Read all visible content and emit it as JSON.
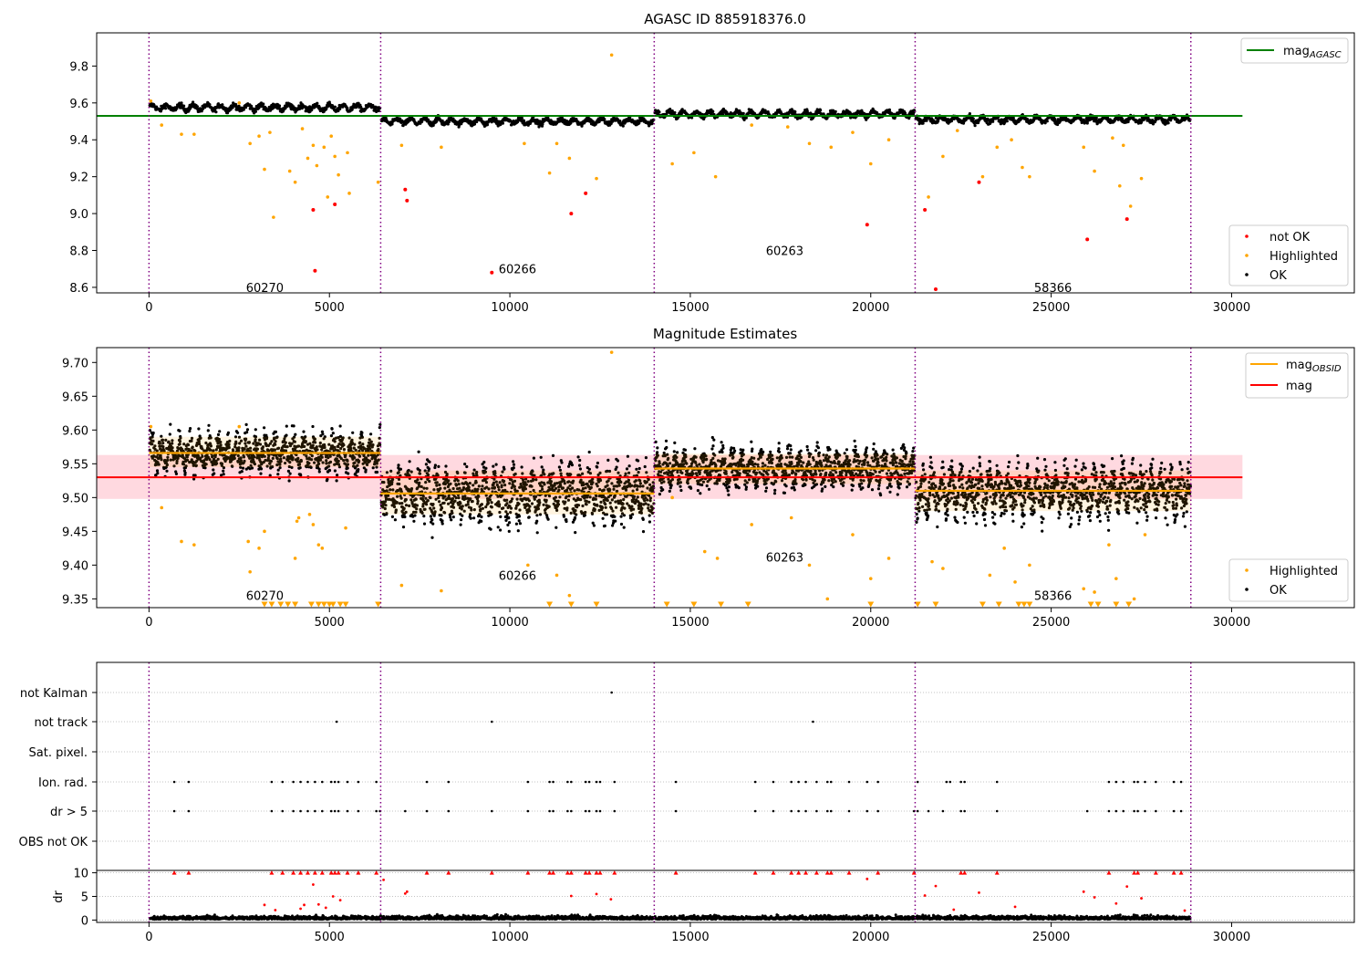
{
  "figure": {
    "title_top": "AGASC ID 885918376.0",
    "title_mid": "Magnitude Estimates"
  },
  "colors": {
    "ok": "#000000",
    "highlighted": "#ffa500",
    "not_ok": "#ff0000",
    "agasc_line": "#008000",
    "mean_line": "#ff0000",
    "mean_band": "#ffc0cb",
    "obsid_line": "#ffa500",
    "boundary": "#800080",
    "grid": "#b0b0b0"
  },
  "chart_data": [
    {
      "type": "scatter",
      "title": "AGASC ID 885918376.0",
      "xlim": [
        -1450,
        33400
      ],
      "ylim": [
        8.57,
        9.98
      ],
      "x_ticks": [
        0,
        5000,
        10000,
        15000,
        20000,
        25000,
        30000
      ],
      "x_tick_labels": [
        "0",
        "5000",
        "10000",
        "15000",
        "20000",
        "25000",
        "30000"
      ],
      "y_ticks": [
        8.6,
        8.8,
        9.0,
        9.2,
        9.4,
        9.6,
        9.8
      ],
      "y_tick_labels": [
        "8.6",
        "8.8",
        "9.0",
        "9.2",
        "9.4",
        "9.6",
        "9.8"
      ],
      "mag_agasc": 9.53,
      "mag_agasc_x_range": [
        -1450,
        30300
      ],
      "obsid_boundaries": [
        0,
        6420,
        14000,
        21230,
        28870
      ],
      "obsids": [
        {
          "label": "60270",
          "x_start": 0,
          "x_end": 6420,
          "mean": 9.575,
          "label_y": 8.6
        },
        {
          "label": "60266",
          "x_start": 6420,
          "x_end": 14000,
          "mean": 9.5,
          "label_y": 8.7
        },
        {
          "label": "60263",
          "x_start": 14000,
          "x_end": 21230,
          "mean": 9.54,
          "label_y": 8.8
        },
        {
          "label": "58366",
          "x_start": 21230,
          "x_end": 28870,
          "mean": 9.51,
          "label_y": 8.6
        }
      ],
      "highlighted_points": [
        [
          50,
          9.61
        ],
        [
          350,
          9.48
        ],
        [
          900,
          9.43
        ],
        [
          1250,
          9.43
        ],
        [
          2500,
          9.6
        ],
        [
          2800,
          9.38
        ],
        [
          3050,
          9.42
        ],
        [
          3200,
          9.24
        ],
        [
          3350,
          9.44
        ],
        [
          3450,
          8.98
        ],
        [
          3900,
          9.23
        ],
        [
          4050,
          9.17
        ],
        [
          4250,
          9.46
        ],
        [
          4400,
          9.3
        ],
        [
          4550,
          9.37
        ],
        [
          4650,
          9.26
        ],
        [
          4850,
          9.36
        ],
        [
          4950,
          9.09
        ],
        [
          5050,
          9.42
        ],
        [
          5150,
          9.31
        ],
        [
          5250,
          9.21
        ],
        [
          5500,
          9.33
        ],
        [
          5550,
          9.11
        ],
        [
          6350,
          9.17
        ],
        [
          7000,
          9.37
        ],
        [
          8100,
          9.36
        ],
        [
          10400,
          9.38
        ],
        [
          11100,
          9.22
        ],
        [
          11300,
          9.38
        ],
        [
          11650,
          9.3
        ],
        [
          12400,
          9.19
        ],
        [
          12820,
          9.86
        ],
        [
          14500,
          9.27
        ],
        [
          15100,
          9.33
        ],
        [
          15700,
          9.2
        ],
        [
          16700,
          9.48
        ],
        [
          17700,
          9.47
        ],
        [
          18300,
          9.38
        ],
        [
          18900,
          9.36
        ],
        [
          19500,
          9.44
        ],
        [
          20000,
          9.27
        ],
        [
          20500,
          9.4
        ],
        [
          21600,
          9.09
        ],
        [
          22000,
          9.31
        ],
        [
          22400,
          9.45
        ],
        [
          23100,
          9.2
        ],
        [
          23500,
          9.36
        ],
        [
          23900,
          9.4
        ],
        [
          24200,
          9.25
        ],
        [
          24400,
          9.2
        ],
        [
          25900,
          9.36
        ],
        [
          26200,
          9.23
        ],
        [
          26700,
          9.41
        ],
        [
          26900,
          9.15
        ],
        [
          27000,
          9.37
        ],
        [
          27200,
          9.04
        ],
        [
          27500,
          9.19
        ]
      ],
      "not_ok_points": [
        [
          4550,
          9.02
        ],
        [
          4600,
          8.69
        ],
        [
          5150,
          9.05
        ],
        [
          7100,
          9.13
        ],
        [
          7150,
          9.07
        ],
        [
          9500,
          8.68
        ],
        [
          11700,
          9.0
        ],
        [
          12100,
          9.11
        ],
        [
          19900,
          8.94
        ],
        [
          21500,
          9.02
        ],
        [
          21800,
          8.59
        ],
        [
          23000,
          9.17
        ],
        [
          26000,
          8.86
        ],
        [
          27100,
          8.97
        ]
      ],
      "legend": {
        "position": "lower right",
        "entries": [
          "not OK",
          "Highlighted",
          "OK"
        ]
      },
      "legend_line": {
        "position": "upper right",
        "main": "mag",
        "sub": "AGASC"
      }
    },
    {
      "type": "scatter",
      "title": "Magnitude Estimates",
      "xlim": [
        -1450,
        33400
      ],
      "ylim": [
        9.337,
        9.722
      ],
      "x_ticks": [
        0,
        5000,
        10000,
        15000,
        20000,
        25000,
        30000
      ],
      "x_tick_labels": [
        "0",
        "5000",
        "10000",
        "15000",
        "20000",
        "25000",
        "30000"
      ],
      "y_ticks": [
        9.35,
        9.4,
        9.45,
        9.5,
        9.55,
        9.6,
        9.65,
        9.7
      ],
      "y_tick_labels": [
        "9.35",
        "9.40",
        "9.45",
        "9.50",
        "9.55",
        "9.60",
        "9.65",
        "9.70"
      ],
      "mag_mean": 9.53,
      "mag_band": [
        9.498,
        9.563
      ],
      "mag_x_range": [
        -1450,
        30300
      ],
      "obsid_means": [
        {
          "label": "60270",
          "x_start": 0,
          "x_end": 6420,
          "mag": 9.566,
          "band": [
            9.545,
            9.59
          ],
          "label_y": 9.355
        },
        {
          "label": "60266",
          "x_start": 6420,
          "x_end": 14000,
          "mag": 9.506,
          "band": [
            9.475,
            9.54
          ],
          "label_y": 9.385
        },
        {
          "label": "60263",
          "x_start": 14000,
          "x_end": 21230,
          "mag": 9.543,
          "band": [
            9.52,
            9.565
          ],
          "label_y": 9.412
        },
        {
          "label": "58366",
          "x_start": 21230,
          "x_end": 28870,
          "mag": 9.51,
          "band": [
            9.48,
            9.54
          ],
          "label_y": 9.355
        }
      ],
      "highlighted_points": [
        [
          50,
          9.605
        ],
        [
          350,
          9.485
        ],
        [
          900,
          9.435
        ],
        [
          1250,
          9.43
        ],
        [
          2500,
          9.605
        ],
        [
          2750,
          9.435
        ],
        [
          2800,
          9.39
        ],
        [
          3050,
          9.425
        ],
        [
          3200,
          9.45
        ],
        [
          4050,
          9.41
        ],
        [
          4100,
          9.465
        ],
        [
          4150,
          9.47
        ],
        [
          4450,
          9.475
        ],
        [
          4550,
          9.46
        ],
        [
          4700,
          9.43
        ],
        [
          4800,
          9.425
        ],
        [
          5450,
          9.455
        ],
        [
          7000,
          9.37
        ],
        [
          8100,
          9.362
        ],
        [
          10500,
          9.4
        ],
        [
          11300,
          9.385
        ],
        [
          11650,
          9.355
        ],
        [
          12820,
          9.715
        ],
        [
          14500,
          9.5
        ],
        [
          15400,
          9.42
        ],
        [
          15750,
          9.41
        ],
        [
          16700,
          9.46
        ],
        [
          17800,
          9.47
        ],
        [
          18300,
          9.4
        ],
        [
          18800,
          9.35
        ],
        [
          19500,
          9.445
        ],
        [
          20000,
          9.38
        ],
        [
          20500,
          9.41
        ],
        [
          21700,
          9.405
        ],
        [
          22000,
          9.395
        ],
        [
          23300,
          9.385
        ],
        [
          23700,
          9.425
        ],
        [
          24000,
          9.375
        ],
        [
          24400,
          9.4
        ],
        [
          25900,
          9.365
        ],
        [
          26200,
          9.36
        ],
        [
          26600,
          9.43
        ],
        [
          26800,
          9.38
        ],
        [
          27300,
          9.35
        ],
        [
          27600,
          9.445
        ]
      ],
      "highlighted_low_markers": [
        3200,
        3400,
        3650,
        3850,
        4050,
        4500,
        4700,
        4850,
        5000,
        5100,
        5300,
        5450,
        6350,
        11100,
        11700,
        12400,
        14350,
        15100,
        15850,
        16600,
        20000,
        21300,
        21800,
        23100,
        23550,
        24100,
        24250,
        24400,
        26100,
        26300,
        26800,
        27150
      ],
      "legend_points": {
        "position": "lower right",
        "entries": [
          "Highlighted",
          "OK"
        ]
      },
      "legend_lines": {
        "position": "upper right",
        "entries": [
          {
            "main": "mag",
            "sub": "OBSID"
          },
          {
            "main": "mag",
            "sub": ""
          }
        ]
      }
    },
    {
      "type": "scatter",
      "xlim": [
        -1450,
        33400
      ],
      "categories": [
        "not Kalman",
        "not track",
        "Sat. pixel.",
        "Ion. rad.",
        "dr > 5",
        "OBS not OK"
      ],
      "flag_points": {
        "not Kalman": [
          12820
        ],
        "not track": [
          5200,
          9500,
          18400
        ],
        "Sat. pixel.": [],
        "Ion. rad.": [
          700,
          1100,
          3400,
          3700,
          4000,
          4200,
          4400,
          4600,
          4800,
          5050,
          5150,
          5250,
          5500,
          5800,
          6300,
          7700,
          8300,
          10500,
          11100,
          11200,
          11600,
          11700,
          12100,
          12200,
          12400,
          12500,
          12900,
          14600,
          16800,
          17300,
          17800,
          18000,
          18200,
          18500,
          18800,
          18900,
          19400,
          19900,
          20200,
          21300,
          22100,
          22200,
          22500,
          22600,
          23500,
          26600,
          26800,
          27000,
          27300,
          27400,
          27600,
          27900,
          28400,
          28600
        ],
        "dr > 5": [
          700,
          1100,
          3400,
          3700,
          4000,
          4200,
          4400,
          4600,
          4800,
          5050,
          5150,
          5250,
          5500,
          5800,
          6300,
          6400,
          7100,
          7700,
          8300,
          9500,
          10500,
          11100,
          11200,
          11600,
          11700,
          12100,
          12200,
          12400,
          12500,
          12900,
          14600,
          16800,
          17300,
          17800,
          18000,
          18200,
          18500,
          18800,
          18900,
          19400,
          19900,
          20200,
          21200,
          21300,
          21600,
          22000,
          22500,
          22600,
          23500,
          26000,
          26600,
          26800,
          27000,
          27300,
          27400,
          27600,
          27900,
          28400,
          28600
        ],
        "OBS not OK": []
      }
    },
    {
      "type": "scatter",
      "ylabel": "dr",
      "xlim": [
        -1450,
        33400
      ],
      "ylim": [
        -0.5,
        10.5
      ],
      "x_ticks": [
        0,
        5000,
        10000,
        15000,
        20000,
        25000,
        30000
      ],
      "x_tick_labels": [
        "0",
        "5000",
        "10000",
        "15000",
        "20000",
        "25000",
        "30000"
      ],
      "y_ticks": [
        0,
        5,
        10
      ],
      "y_tick_labels": [
        "0",
        "5",
        "10"
      ],
      "dr_capped_red": [
        700,
        1100,
        3400,
        3700,
        4000,
        4200,
        4400,
        4600,
        4800,
        5050,
        5150,
        5250,
        5500,
        5800,
        6300,
        7700,
        8300,
        9500,
        10500,
        11100,
        11200,
        11600,
        11700,
        12100,
        12200,
        12400,
        12500,
        12900,
        14600,
        16800,
        17300,
        17800,
        18000,
        18200,
        18500,
        18800,
        18900,
        19400,
        20200,
        21200,
        22500,
        22600,
        23500,
        26600,
        27300,
        27400,
        27900,
        28400,
        28600
      ],
      "dr_mid_red": [
        [
          3200,
          3.2
        ],
        [
          3500,
          2.1
        ],
        [
          4200,
          2.4
        ],
        [
          4300,
          3.2
        ],
        [
          4550,
          7.5
        ],
        [
          4700,
          3.3
        ],
        [
          4900,
          2.6
        ],
        [
          5100,
          5.0
        ],
        [
          5300,
          4.2
        ],
        [
          6500,
          8.5
        ],
        [
          7100,
          5.6
        ],
        [
          7150,
          6.0
        ],
        [
          11700,
          5.1
        ],
        [
          12400,
          5.5
        ],
        [
          12800,
          4.4
        ],
        [
          19900,
          8.7
        ],
        [
          21500,
          5.2
        ],
        [
          21800,
          7.2
        ],
        [
          22300,
          2.2
        ],
        [
          23000,
          5.8
        ],
        [
          24000,
          2.8
        ],
        [
          25900,
          6.0
        ],
        [
          26200,
          4.8
        ],
        [
          26800,
          3.5
        ],
        [
          27100,
          7.1
        ],
        [
          27500,
          4.6
        ],
        [
          28700,
          2.0
        ]
      ]
    }
  ]
}
